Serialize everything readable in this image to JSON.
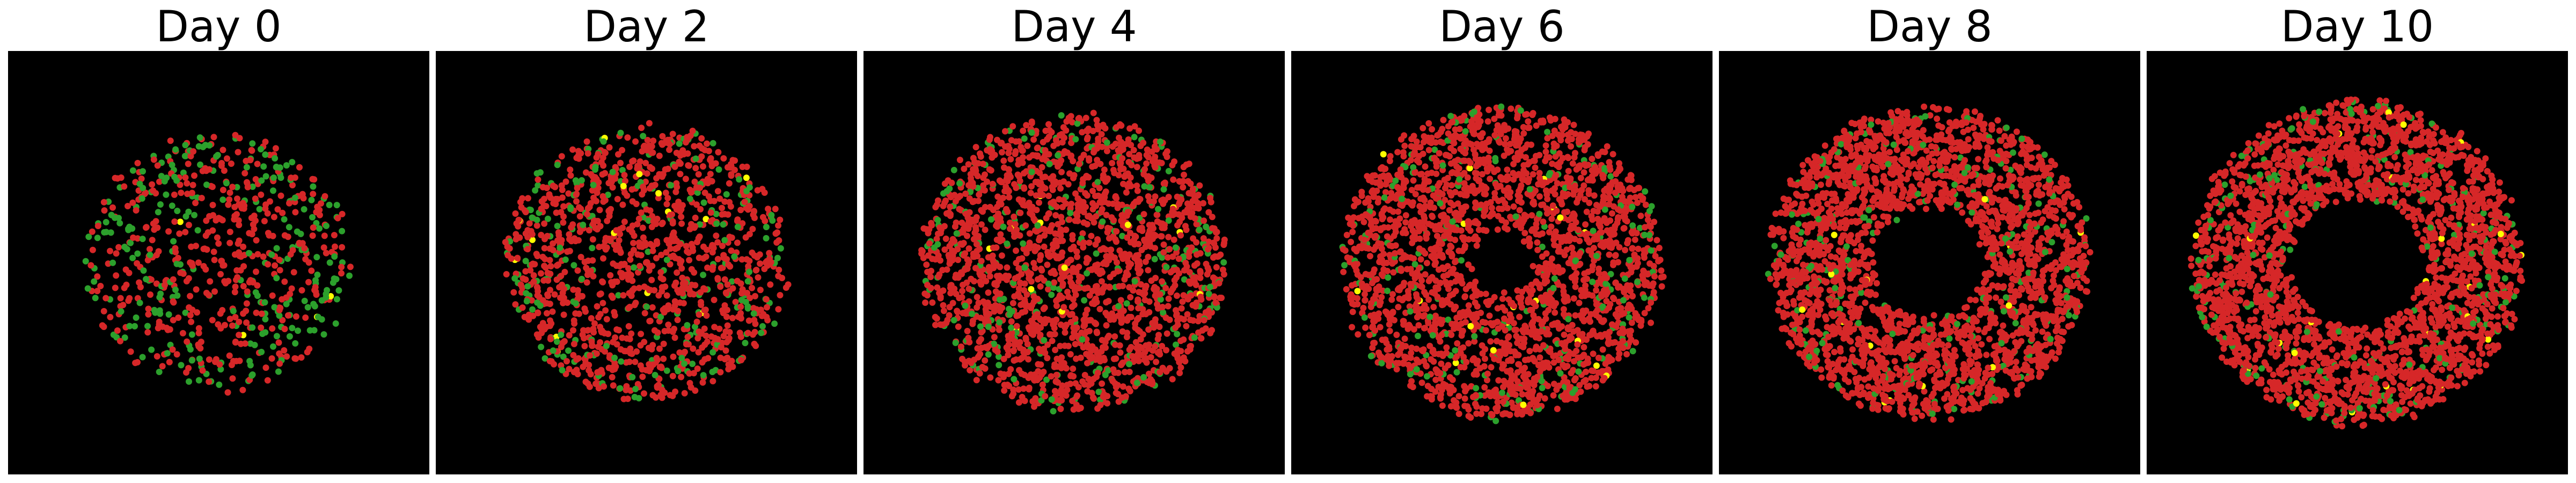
{
  "figure": {
    "panels": [
      {
        "title": "Day 0"
      },
      {
        "title": "Day 2"
      },
      {
        "title": "Day 4"
      },
      {
        "title": "Day 6"
      },
      {
        "title": "Day 8"
      },
      {
        "title": "Day 10"
      }
    ],
    "colors": {
      "background": "#000000",
      "red_cells": "#d62728",
      "green_cells": "#2ca02c",
      "yellow_cells": "#ffff00"
    }
  }
}
